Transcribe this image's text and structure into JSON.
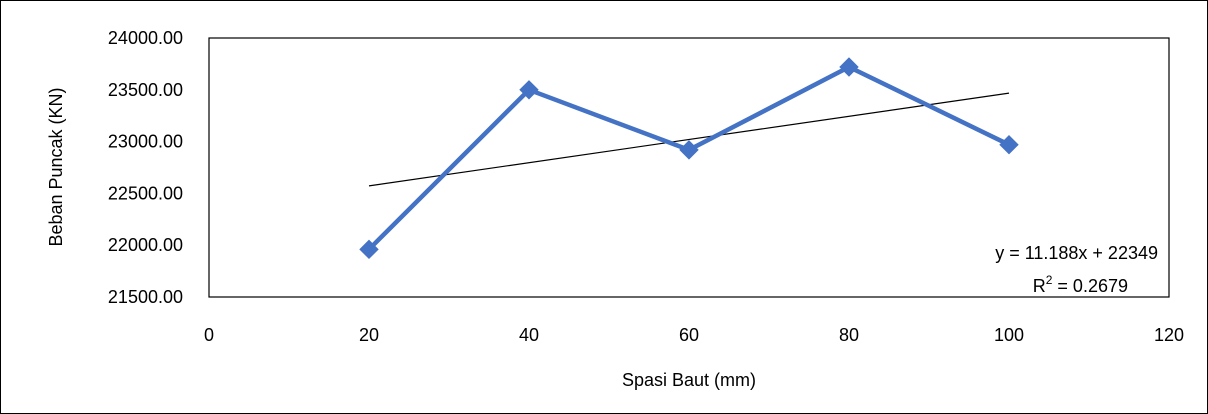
{
  "chart_data": {
    "type": "scatter",
    "xlabel": "Spasi Baut (mm)",
    "ylabel": "Beban Puncak (KN)",
    "xlim": [
      0,
      120
    ],
    "ylim": [
      21500,
      24000
    ],
    "x_ticks": [
      "0",
      "20",
      "40",
      "60",
      "80",
      "100",
      "120"
    ],
    "y_ticks": [
      "21500.00",
      "22000.00",
      "22500.00",
      "23000.00",
      "23500.00",
      "24000.00"
    ],
    "grid": false,
    "legend": "none",
    "series": [
      {
        "x": [
          20,
          40,
          60,
          80,
          100
        ],
        "y": [
          21960,
          23500,
          22920,
          23720,
          22970
        ],
        "color": "#4472C4",
        "marker": "diamond",
        "line": true
      }
    ],
    "trendline": {
      "type": "linear",
      "slope": 11.188,
      "intercept": 22349,
      "x_range": [
        20,
        100
      ],
      "color": "#000000",
      "equation_label": "y = 11.188x + 22349",
      "r2_prefix": "R",
      "r2_superscript": "2",
      "r2_value": " = 0.2679"
    }
  }
}
